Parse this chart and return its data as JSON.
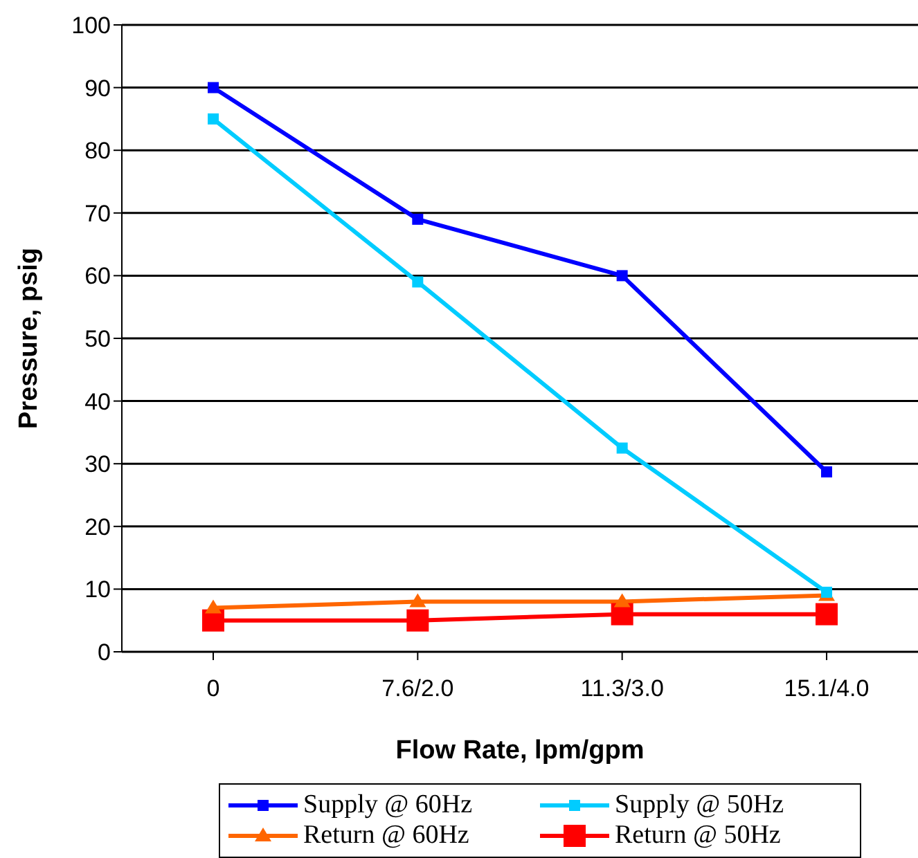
{
  "chart_data": {
    "type": "line",
    "xlabel": "Flow Rate, lpm/gpm",
    "ylabel": "Pressure, psig",
    "categories": [
      "0",
      "7.6/2.0",
      "11.3/3.0",
      "15.1/4.0"
    ],
    "ylim": [
      0,
      100
    ],
    "yticks": [
      0,
      10,
      20,
      30,
      40,
      50,
      60,
      70,
      80,
      90,
      100
    ],
    "grid": "y",
    "legend": "bottom",
    "line_style": "solid",
    "series": [
      {
        "name": "Supply @ 60Hz",
        "color": "#0000ff",
        "marker": "square",
        "values": [
          90,
          69,
          60,
          28.7
        ]
      },
      {
        "name": "Supply @ 50Hz",
        "color": "#00ccff",
        "marker": "square",
        "values": [
          85,
          59,
          32.5,
          9.5
        ]
      },
      {
        "name": "Return @ 60Hz",
        "color": "#ff6600",
        "marker": "triangle",
        "values": [
          7,
          8,
          8,
          9
        ]
      },
      {
        "name": "Return @ 50Hz",
        "color": "#ff0000",
        "marker": "square",
        "values": [
          5,
          5,
          6,
          6
        ]
      }
    ]
  }
}
